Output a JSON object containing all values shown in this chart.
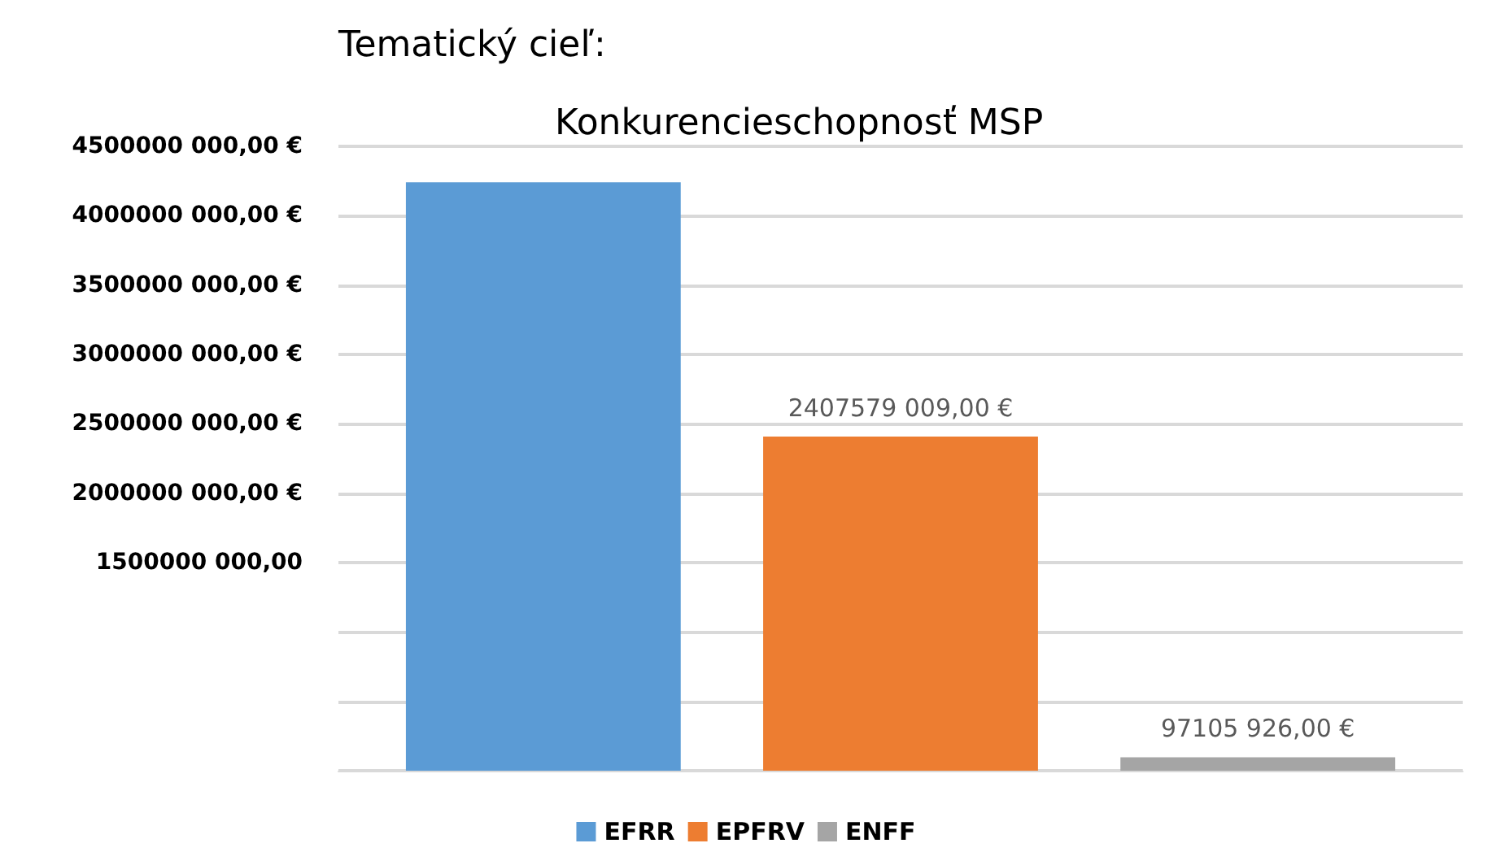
{
  "chart_data": {
    "type": "bar",
    "title": "Tematický cieľ:",
    "subtitle": "Konkurencieschopnosť MSP",
    "categories": [
      null
    ],
    "series": [
      {
        "name": "EFRR",
        "color": "#5b9bd5",
        "values": [
          4240000000
        ]
      },
      {
        "name": "EPFRV",
        "color": "#ed7d31",
        "values": [
          2407579009
        ],
        "value_labels": [
          "2407579 009,00 €"
        ]
      },
      {
        "name": "ENFF",
        "color": "#a5a5a5",
        "values": [
          97105926
        ],
        "value_labels": [
          "97105 926,00 €"
        ]
      }
    ],
    "ylim": [
      0,
      4500000000
    ],
    "yticks": [
      {
        "value": 0,
        "label": null
      },
      {
        "value": 500000000,
        "label": null
      },
      {
        "value": 1000000000,
        "label": null
      },
      {
        "value": 1500000000,
        "label": "1500000 000,00"
      },
      {
        "value": 2000000000,
        "label": "2000000 000,00 €"
      },
      {
        "value": 2500000000,
        "label": "2500000 000,00 €"
      },
      {
        "value": 3000000000,
        "label": "3000000 000,00 €"
      },
      {
        "value": 3500000000,
        "label": "3500000 000,00 €"
      },
      {
        "value": 4000000000,
        "label": "4000000 000,00 €"
      },
      {
        "value": 4500000000,
        "label": "4500000 000,00 €"
      }
    ],
    "grid": "y",
    "legend": "bottom"
  }
}
